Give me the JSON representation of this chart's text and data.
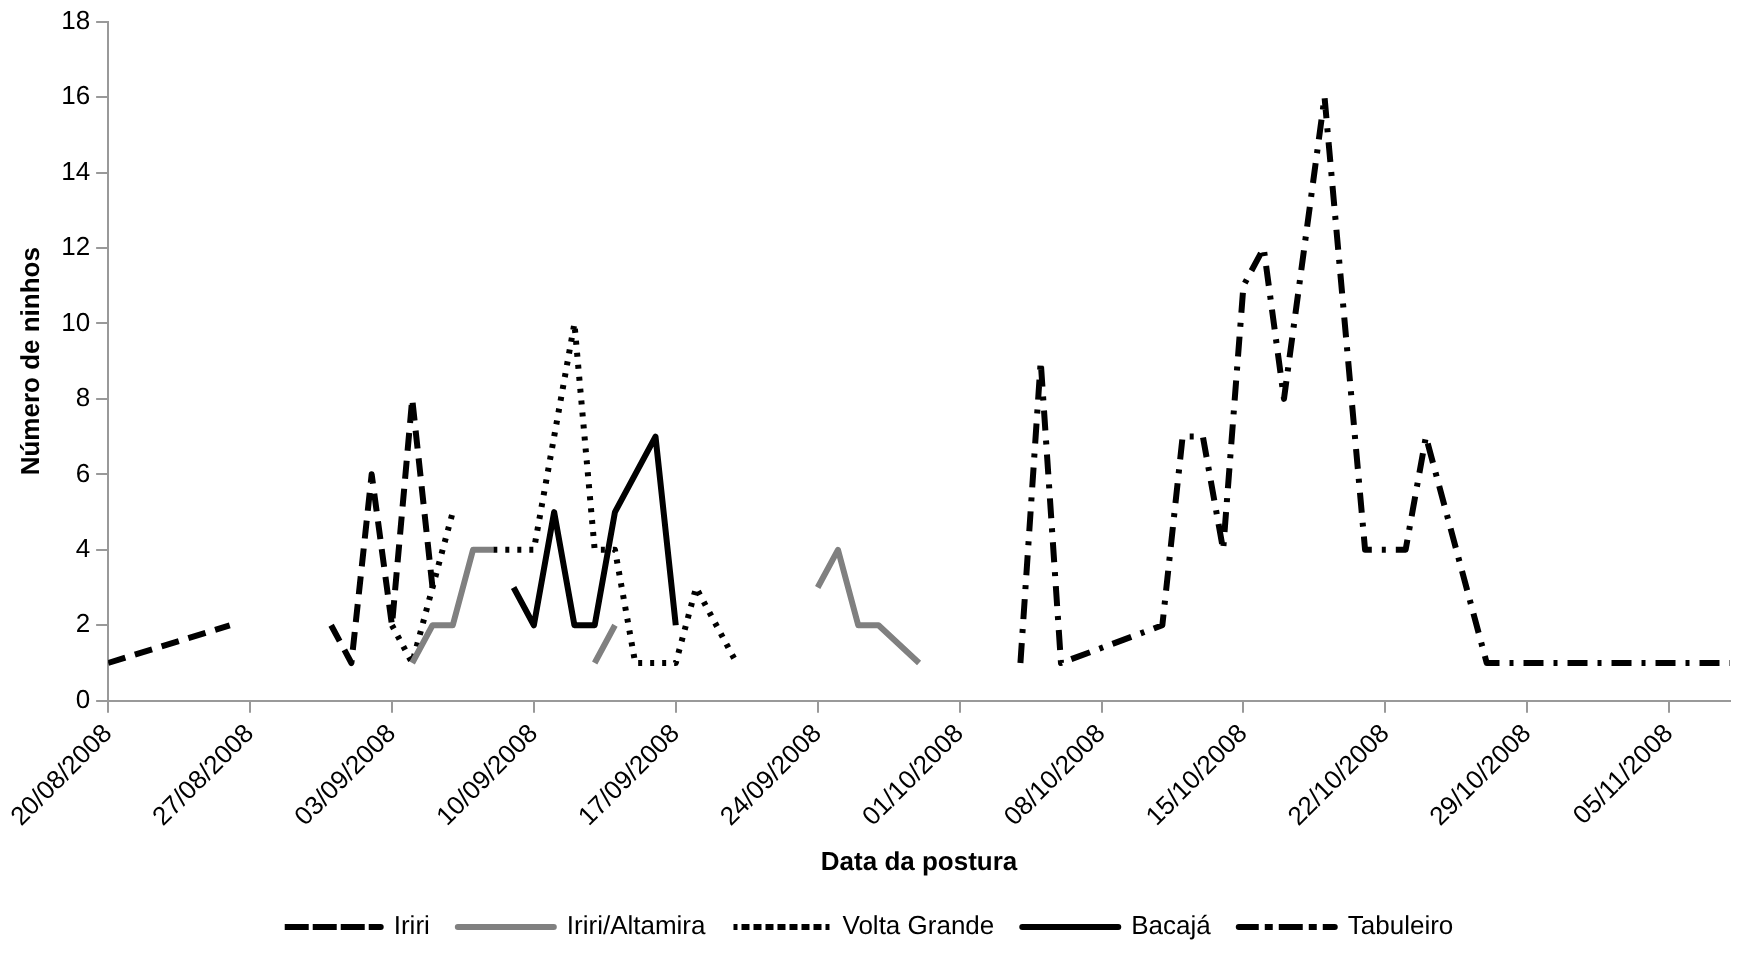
{
  "chart_data": {
    "type": "line",
    "xlabel": "Data da postura",
    "ylabel": "Número de ninhos",
    "xlim": [
      "2008-08-20",
      "2008-11-08"
    ],
    "xticks": [
      {
        "value": "2008-08-20",
        "label": "20/08/2008"
      },
      {
        "value": "2008-08-27",
        "label": "27/08/2008"
      },
      {
        "value": "2008-09-03",
        "label": "03/09/2008"
      },
      {
        "value": "2008-09-10",
        "label": "10/09/2008"
      },
      {
        "value": "2008-09-17",
        "label": "17/09/2008"
      },
      {
        "value": "2008-09-24",
        "label": "24/09/2008"
      },
      {
        "value": "2008-10-01",
        "label": "01/10/2008"
      },
      {
        "value": "2008-10-08",
        "label": "08/10/2008"
      },
      {
        "value": "2008-10-15",
        "label": "15/10/2008"
      },
      {
        "value": "2008-10-22",
        "label": "22/10/2008"
      },
      {
        "value": "2008-10-29",
        "label": "29/10/2008"
      },
      {
        "value": "2008-11-05",
        "label": "05/11/2008"
      }
    ],
    "ylim": [
      0,
      18
    ],
    "yticks": [
      0,
      2,
      4,
      6,
      8,
      10,
      12,
      14,
      16,
      18
    ],
    "grid": false,
    "legend": "bottom",
    "marker": "none",
    "series": [
      {
        "name": "Iriri",
        "color": "#000000",
        "line_style": "dashed",
        "x": [
          "2008-08-20",
          "2008-08-26",
          "2008-08-28",
          "2008-08-31",
          "2008-09-01",
          "2008-09-02",
          "2008-09-03",
          "2008-09-04",
          "2008-09-05"
        ],
        "values": [
          1,
          2,
          null,
          2,
          1,
          6,
          2,
          8,
          3
        ]
      },
      {
        "name": "Iriri/Altamira",
        "color": "#808080",
        "line_style": "solid",
        "x": [
          "2008-09-04",
          "2008-09-05",
          "2008-09-06",
          "2008-09-07",
          "2008-09-08",
          "2008-09-10",
          "2008-09-13",
          "2008-09-14",
          "2008-09-18",
          "2008-09-24",
          "2008-09-25",
          "2008-09-26",
          "2008-09-27",
          "2008-09-29"
        ],
        "values": [
          1,
          2,
          2,
          4,
          4,
          null,
          1,
          2,
          null,
          3,
          4,
          2,
          2,
          1
        ]
      },
      {
        "name": "Volta Grande",
        "color": "#000000",
        "line_style": "dotted",
        "x": [
          "2008-09-03",
          "2008-09-04",
          "2008-09-05",
          "2008-09-06",
          "2008-09-07",
          "2008-09-08",
          "2008-09-10",
          "2008-09-12",
          "2008-09-13",
          "2008-09-14",
          "2008-09-15",
          "2008-09-17",
          "2008-09-18",
          "2008-09-19",
          "2008-09-20"
        ],
        "values": [
          2,
          1,
          3,
          5,
          null,
          4,
          4,
          10,
          4,
          4,
          1,
          1,
          3,
          2,
          1
        ]
      },
      {
        "name": "Bacajá",
        "color": "#000000",
        "line_style": "solid",
        "x": [
          "2008-09-09",
          "2008-09-10",
          "2008-09-11",
          "2008-09-12",
          "2008-09-13",
          "2008-09-14",
          "2008-09-16",
          "2008-09-17"
        ],
        "values": [
          3,
          2,
          5,
          2,
          2,
          5,
          7,
          2
        ]
      },
      {
        "name": "Tabuleiro",
        "color": "#000000",
        "line_style": "dashdot",
        "x": [
          "2008-10-04",
          "2008-10-05",
          "2008-10-06",
          "2008-10-11",
          "2008-10-12",
          "2008-10-13",
          "2008-10-14",
          "2008-10-15",
          "2008-10-16",
          "2008-10-17",
          "2008-10-19",
          "2008-10-21",
          "2008-10-23",
          "2008-10-24",
          "2008-10-27",
          "2008-11-08"
        ],
        "values": [
          1,
          9,
          1,
          2,
          7,
          7,
          4,
          11,
          12,
          8,
          16,
          4,
          4,
          7,
          1,
          1
        ]
      }
    ]
  }
}
